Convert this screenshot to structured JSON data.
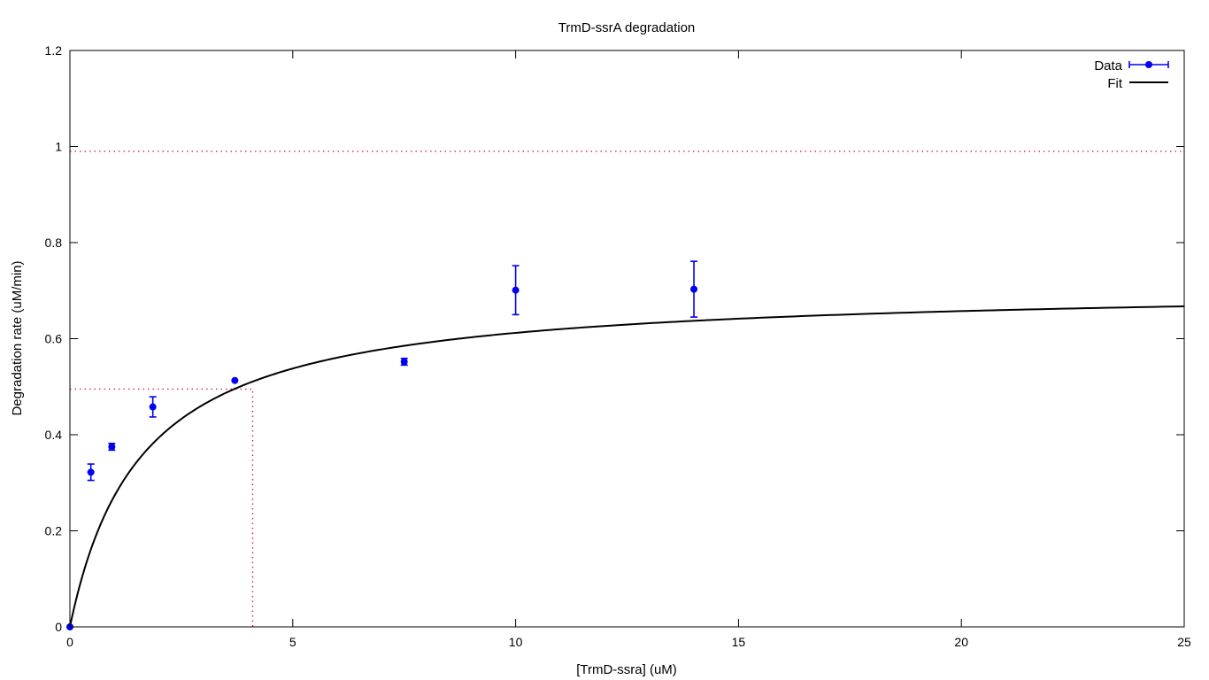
{
  "chart_data": {
    "type": "scatter",
    "title": "TrmD-ssrA degradation",
    "xlabel": "[TrmD-ssra] (uM)",
    "ylabel": "Degradation rate (uM/min)",
    "xlim": [
      0,
      25
    ],
    "ylim": [
      0,
      1.2
    ],
    "xticks": [
      0,
      5,
      10,
      15,
      20,
      25
    ],
    "yticks": [
      0,
      0.2,
      0.4,
      0.6,
      0.8,
      1,
      1.2
    ],
    "xtick_labels": [
      "0",
      "5",
      "10",
      "15",
      "20",
      "25"
    ],
    "ytick_labels": [
      "0",
      "0.2",
      "0.4",
      "0.6",
      "0.8",
      "1",
      "1.2"
    ],
    "grid": false,
    "legend_position": "top-right",
    "series": [
      {
        "name": "Data",
        "kind": "points-with-errorbars",
        "color": "#0000ee",
        "x": [
          0,
          0.47,
          0.94,
          1.86,
          3.7,
          7.5,
          10,
          14
        ],
        "y": [
          0.0,
          0.322,
          0.375,
          0.458,
          0.513,
          0.552,
          0.701,
          0.703
        ],
        "err": [
          0.0,
          0.017,
          0.007,
          0.021,
          0.0,
          0.007,
          0.051,
          0.058
        ]
      },
      {
        "name": "Fit",
        "kind": "michaelis-menten-curve",
        "color": "#000000",
        "vmax": 0.71,
        "km": 1.6
      }
    ],
    "annotations": [
      {
        "kind": "hline-dotted",
        "y": 0.99,
        "color": "#dd2244"
      },
      {
        "kind": "half-max-guide-dotted",
        "x": 4.1,
        "y": 0.495,
        "color": "#dd2244"
      }
    ]
  }
}
